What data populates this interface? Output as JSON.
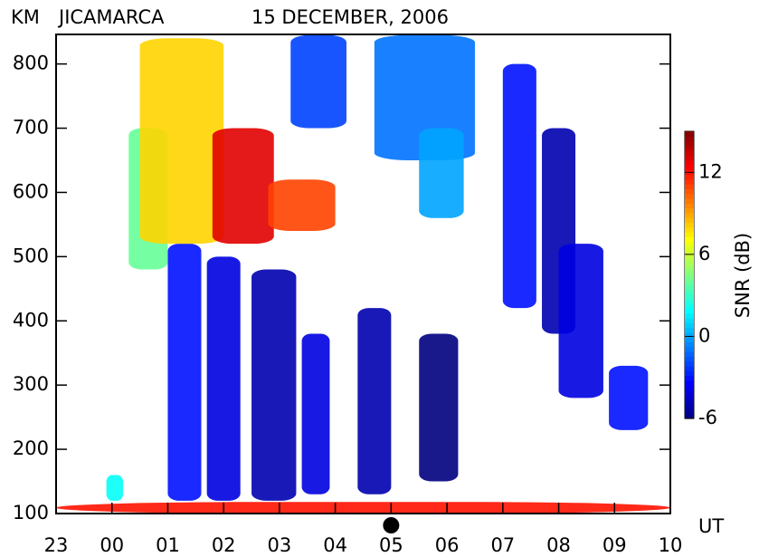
{
  "chart_data": {
    "type": "heatmap",
    "unit_label": "KM",
    "station": "JICAMARCA",
    "date": "15 DECEMBER, 2006",
    "x_label": "UT",
    "colorbar_label": "SNR (dB)",
    "xlim": [
      23,
      34
    ],
    "xticks": [
      23,
      {
        "value": 24,
        "label": "00"
      },
      {
        "value": 25,
        "label": "01"
      },
      {
        "value": 26,
        "label": "02"
      },
      {
        "value": 27,
        "label": "03"
      },
      {
        "value": 28,
        "label": "04"
      },
      {
        "value": 29,
        "label": "05"
      },
      {
        "value": 30,
        "label": "06"
      },
      {
        "value": 31,
        "label": "07"
      },
      {
        "value": 32,
        "label": "08"
      },
      {
        "value": 33,
        "label": "09"
      },
      {
        "value": 34,
        "label": "10"
      }
    ],
    "ylim": [
      100,
      846
    ],
    "yticks": [
      100,
      200,
      300,
      400,
      500,
      600,
      700,
      800
    ],
    "clim": [
      -6,
      15
    ],
    "cticks": [
      -6,
      0,
      6,
      12
    ],
    "marker_x": 29,
    "echoes": [
      {
        "x": [
          23,
          34
        ],
        "y": [
          100,
          118
        ],
        "snr": 12
      },
      {
        "x": [
          23.9,
          24.2
        ],
        "y": [
          120,
          160
        ],
        "snr": 2
      },
      {
        "x": [
          25,
          25.6
        ],
        "y": [
          120,
          520
        ],
        "snr": -3
      },
      {
        "x": [
          25.7,
          26.3
        ],
        "y": [
          120,
          500
        ],
        "snr": -4
      },
      {
        "x": [
          26.5,
          27.3
        ],
        "y": [
          120,
          480
        ],
        "snr": -5
      },
      {
        "x": [
          27.4,
          27.9
        ],
        "y": [
          130,
          380
        ],
        "snr": -4
      },
      {
        "x": [
          28.4,
          29
        ],
        "y": [
          130,
          420
        ],
        "snr": -5
      },
      {
        "x": [
          29.5,
          30.2
        ],
        "y": [
          150,
          380
        ],
        "snr": -6
      },
      {
        "x": [
          27.2,
          28.2
        ],
        "y": [
          700,
          845
        ],
        "snr": -2
      },
      {
        "x": [
          28.7,
          30.5
        ],
        "y": [
          650,
          845
        ],
        "snr": -1
      },
      {
        "x": [
          29.5,
          30.3
        ],
        "y": [
          560,
          700
        ],
        "snr": 0
      },
      {
        "x": [
          31,
          31.6
        ],
        "y": [
          420,
          800
        ],
        "snr": -3
      },
      {
        "x": [
          31.7,
          32.3
        ],
        "y": [
          380,
          700
        ],
        "snr": -5
      },
      {
        "x": [
          32,
          32.8
        ],
        "y": [
          280,
          520
        ],
        "snr": -4
      },
      {
        "x": [
          32.9,
          33.6
        ],
        "y": [
          230,
          330
        ],
        "snr": -3
      },
      {
        "x": [
          24.3,
          25
        ],
        "y": [
          480,
          700
        ],
        "snr": 4
      },
      {
        "x": [
          24.5,
          26
        ],
        "y": [
          520,
          840
        ],
        "snr": 8
      },
      {
        "x": [
          25.8,
          26.9
        ],
        "y": [
          520,
          700
        ],
        "snr": 13
      },
      {
        "x": [
          26.8,
          28
        ],
        "y": [
          540,
          620
        ],
        "snr": 11
      }
    ]
  }
}
